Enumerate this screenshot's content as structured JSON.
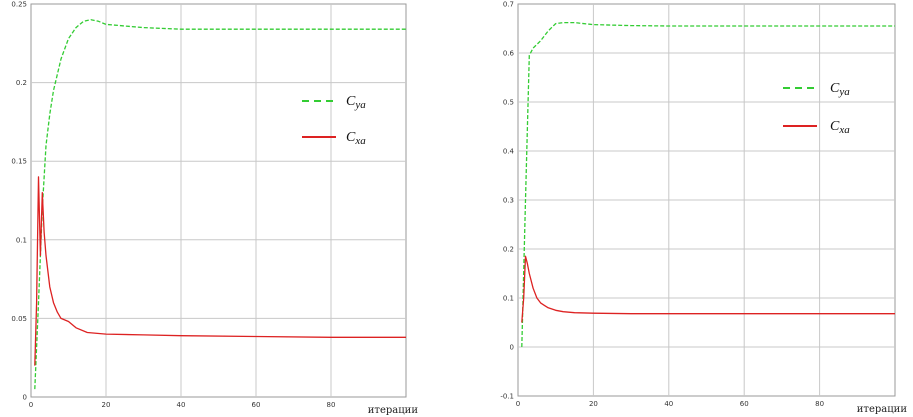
{
  "chart_data": [
    {
      "type": "line",
      "title": "",
      "xlabel": "итерации",
      "ylabel": "",
      "xlim": [
        0,
        100
      ],
      "ylim": [
        0,
        0.25
      ],
      "x_ticks": [
        "0",
        "20",
        "40",
        "60",
        "80"
      ],
      "y_ticks": [
        "0",
        "0.05",
        "0.1",
        "0.15",
        "0.2",
        "0.25"
      ],
      "grid": true,
      "legend_position": "right",
      "series": [
        {
          "name": "Cya",
          "color": "#33cc33",
          "style": "dashed",
          "x": [
            1,
            2,
            3,
            4,
            5,
            6,
            8,
            10,
            12,
            14,
            16,
            18,
            20,
            25,
            30,
            40,
            50,
            60,
            80,
            100
          ],
          "y": [
            0.005,
            0.06,
            0.12,
            0.16,
            0.18,
            0.195,
            0.215,
            0.228,
            0.235,
            0.239,
            0.24,
            0.239,
            0.237,
            0.236,
            0.235,
            0.234,
            0.234,
            0.234,
            0.234,
            0.234
          ]
        },
        {
          "name": "Cxa",
          "color": "#dd2222",
          "style": "solid",
          "x": [
            1,
            1.5,
            2,
            2.5,
            3,
            3.5,
            4,
            5,
            6,
            7,
            8,
            10,
            12,
            15,
            20,
            30,
            40,
            60,
            80,
            100
          ],
          "y": [
            0.02,
            0.06,
            0.14,
            0.09,
            0.13,
            0.105,
            0.09,
            0.07,
            0.06,
            0.054,
            0.05,
            0.048,
            0.044,
            0.041,
            0.04,
            0.0395,
            0.039,
            0.0385,
            0.038,
            0.038
          ]
        }
      ]
    },
    {
      "type": "line",
      "title": "",
      "xlabel": "итерации",
      "ylabel": "",
      "xlim": [
        0,
        100
      ],
      "ylim": [
        -0.1,
        0.7
      ],
      "x_ticks": [
        "0",
        "20",
        "40",
        "60",
        "80"
      ],
      "y_ticks": [
        "-0.1",
        "0",
        "0.1",
        "0.2",
        "0.3",
        "0.4",
        "0.5",
        "0.6",
        "0.7"
      ],
      "grid": true,
      "legend_position": "right",
      "series": [
        {
          "name": "Cya",
          "color": "#33cc33",
          "style": "dashed",
          "x": [
            1,
            2,
            3,
            4,
            6,
            8,
            10,
            12,
            15,
            20,
            30,
            40,
            60,
            80,
            100
          ],
          "y": [
            0.0,
            0.3,
            0.595,
            0.61,
            0.625,
            0.645,
            0.66,
            0.662,
            0.662,
            0.658,
            0.656,
            0.655,
            0.655,
            0.655,
            0.655
          ]
        },
        {
          "name": "Cxa",
          "color": "#dd2222",
          "style": "solid",
          "x": [
            1,
            1.5,
            2,
            2.5,
            3,
            4,
            5,
            6,
            7,
            8,
            10,
            12,
            15,
            20,
            30,
            50,
            100
          ],
          "y": [
            0.05,
            0.1,
            0.185,
            0.17,
            0.15,
            0.12,
            0.1,
            0.09,
            0.085,
            0.08,
            0.075,
            0.072,
            0.07,
            0.069,
            0.068,
            0.068,
            0.068
          ]
        }
      ]
    }
  ],
  "legend_labels": [
    {
      "symbol": "C",
      "subscript": "ya"
    },
    {
      "symbol": "C",
      "subscript": "xa"
    }
  ]
}
